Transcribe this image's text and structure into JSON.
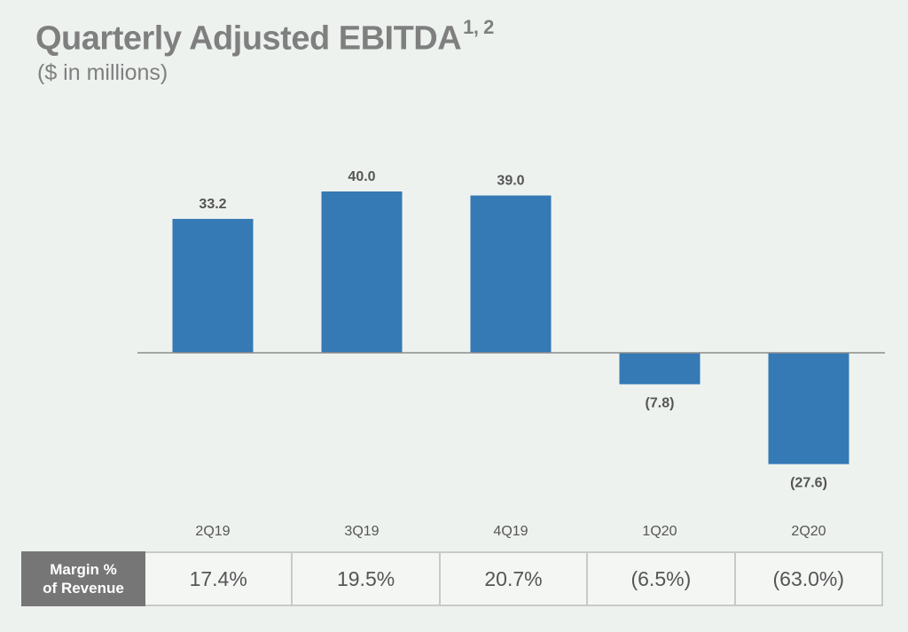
{
  "title": "Quarterly Adjusted EBITDA",
  "title_superscript": "1, 2",
  "subtitle": "($ in millions)",
  "colors": {
    "bar": "#3579b5",
    "text": "#7f7f7f",
    "label": "#555555",
    "axis": "#8c8c8c"
  },
  "chart_data": {
    "type": "bar",
    "title": "Quarterly Adjusted EBITDA",
    "subtitle": "($ in millions)",
    "categories": [
      "2Q19",
      "3Q19",
      "4Q19",
      "1Q20",
      "2Q20"
    ],
    "values": [
      33.2,
      40.0,
      39.0,
      -7.8,
      -27.6
    ],
    "data_labels": [
      "33.2",
      "40.0",
      "39.0",
      "(7.8)",
      "(27.6)"
    ],
    "xlabel": "",
    "ylabel": "",
    "ylim": [
      -35,
      48
    ],
    "grid": false,
    "legend": "none"
  },
  "margin_table": {
    "header_line1": "Margin %",
    "header_line2": "of Revenue",
    "values": [
      "17.4%",
      "19.5%",
      "20.7%",
      "(6.5%)",
      "(63.0%)"
    ]
  }
}
